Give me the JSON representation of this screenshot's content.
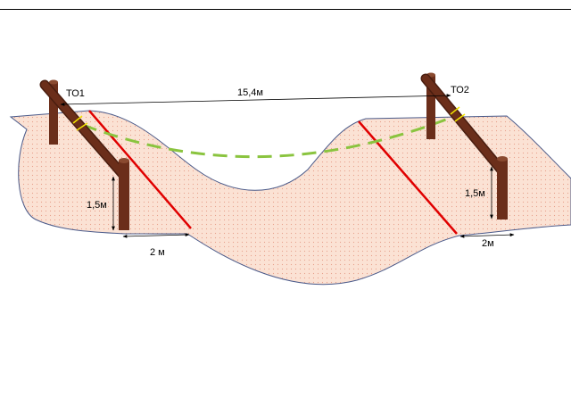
{
  "labels": {
    "to1": "ТО1",
    "to2": "ТО2",
    "span_distance": "15,4м",
    "height_left": "1,5м",
    "height_right": "1,5м",
    "offset_left": "2 м",
    "offset_right": "2м"
  },
  "colors": {
    "terrain_fill": "#fbe2d4",
    "terrain_dots": "#e8a08a",
    "terrain_outline": "#4a5a8a",
    "post": "#6b2e1a",
    "post_dark": "#4a1e10",
    "post_top": "#8a4a30",
    "boundary_line": "#e00000",
    "rope": "#8ac43f",
    "lashing": "#f2e600",
    "dimension": "#000000"
  }
}
